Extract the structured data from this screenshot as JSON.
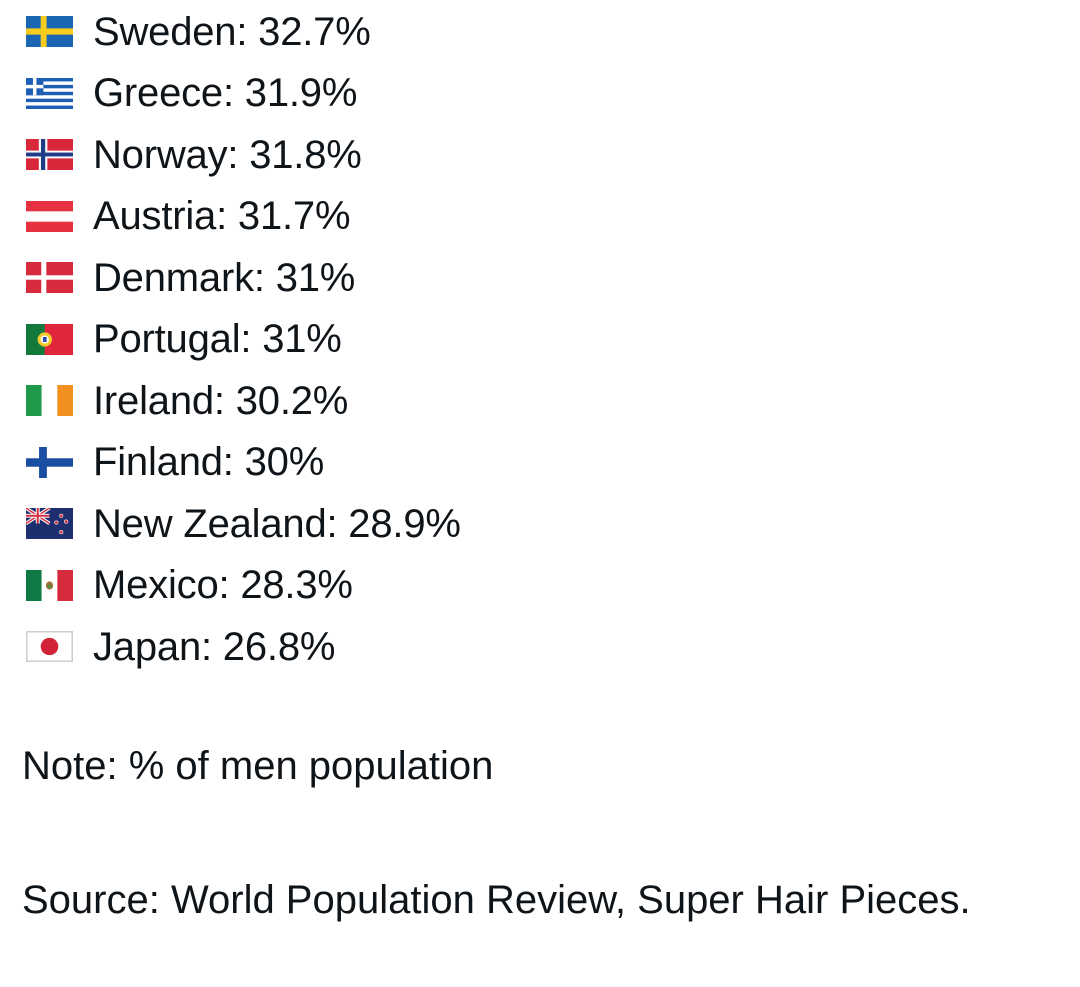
{
  "post": {
    "countries": [
      {
        "name": "Sweden",
        "value": "32.7%",
        "label": "Sweden: 32.7%",
        "flag_icon": "sweden-flag-icon"
      },
      {
        "name": "Greece",
        "value": "31.9%",
        "label": "Greece: 31.9%",
        "flag_icon": "greece-flag-icon"
      },
      {
        "name": "Norway",
        "value": "31.8%",
        "label": "Norway: 31.8%",
        "flag_icon": "norway-flag-icon"
      },
      {
        "name": "Austria",
        "value": "31.7%",
        "label": "Austria: 31.7%",
        "flag_icon": "austria-flag-icon"
      },
      {
        "name": "Denmark",
        "value": "31%",
        "label": "Denmark: 31%",
        "flag_icon": "denmark-flag-icon"
      },
      {
        "name": "Portugal",
        "value": "31%",
        "label": "Portugal: 31%",
        "flag_icon": "portugal-flag-icon"
      },
      {
        "name": "Ireland",
        "value": "30.2%",
        "label": "Ireland: 30.2%",
        "flag_icon": "ireland-flag-icon"
      },
      {
        "name": "Finland",
        "value": "30%",
        "label": "Finland: 30%",
        "flag_icon": "finland-flag-icon"
      },
      {
        "name": "New Zealand",
        "value": "28.9%",
        "label": "New Zealand: 28.9%",
        "flag_icon": "new-zealand-flag-icon"
      },
      {
        "name": "Mexico",
        "value": "28.3%",
        "label": "Mexico: 28.3%",
        "flag_icon": "mexico-flag-icon"
      },
      {
        "name": "Japan",
        "value": "26.8%",
        "label": "Japan: 26.8%",
        "flag_icon": "japan-flag-icon"
      }
    ],
    "note": "Note: % of men population",
    "source": "Source: World Population Review, Super Hair Pieces."
  },
  "colors": {
    "text": "#0f1419",
    "background": "#ffffff"
  }
}
